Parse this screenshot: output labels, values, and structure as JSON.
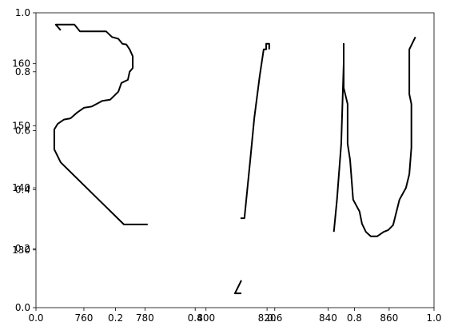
{
  "chart_data": [
    {
      "type": "line",
      "xlim": [
        0,
        1
      ],
      "ylim": [
        0,
        1
      ],
      "xticks": [
        {
          "value": 0,
          "label": "0.0"
        },
        {
          "value": 0.2,
          "label": "0.2"
        },
        {
          "value": 0.4,
          "label": "0.4"
        },
        {
          "value": 0.6,
          "label": "0.6"
        },
        {
          "value": 0.8,
          "label": "0.8"
        },
        {
          "value": 1,
          "label": "1.0"
        }
      ],
      "yticks": [
        {
          "value": 0,
          "label": "0.0"
        },
        {
          "value": 0.2,
          "label": "0.2"
        },
        {
          "value": 0.4,
          "label": "0.4"
        },
        {
          "value": 0.6,
          "label": "0.6"
        },
        {
          "value": 0.8,
          "label": "0.8"
        },
        {
          "value": 1,
          "label": "1.0"
        }
      ],
      "series": []
    },
    {
      "type": "line",
      "xlim": [
        744.3,
        874.7
      ],
      "ylim": [
        120.7,
        168.2
      ],
      "xticks": [
        760,
        780,
        800,
        820,
        840,
        860
      ],
      "yticks": [
        130,
        140,
        150,
        160
      ],
      "series": [
        {
          "color": "#000000",
          "x": [
            752.4,
            750.8,
            756.9,
            758.7,
            767.3,
            769.2,
            771.3,
            772.6,
            773.9,
            775.0,
            776.0,
            776.0,
            775.0,
            774.4,
            772.3,
            771.3,
            768.6,
            766.0,
            762.6,
            760.0,
            757.7,
            755.6,
            753.5,
            751.4,
            750.3,
            750.3,
            752.4,
            773.1,
            780.9
          ],
          "y": [
            165.4,
            166.3,
            166.3,
            165.2,
            165.2,
            164.3,
            164.0,
            163.2,
            163.1,
            162.3,
            161.2,
            159.3,
            158.7,
            157.4,
            156.9,
            155.5,
            154.2,
            154.0,
            153.1,
            152.9,
            152.1,
            151.2,
            151.0,
            150.3,
            149.4,
            146.2,
            144.1,
            134.1,
            134.1
          ]
        },
        {
          "color": "#000000",
          "x": [
            811.6,
            809.5,
            811.6,
            null,
            811.3,
            812.6,
            814.5,
            815.8,
            817.6,
            818.9,
            819.7,
            819.7,
            820.7,
            820.7
          ],
          "y": [
            125.1,
            123.0,
            123.0,
            null,
            135.1,
            135.1,
            144.5,
            151.2,
            158.0,
            162.3,
            162.3,
            163.2,
            163.2,
            162.3
          ]
        },
        {
          "color": "#000000",
          "x": [
            841.9,
            842.9,
            844.3,
            845.1,
            845.1,
            845.1,
            846.4,
            846.4,
            847.2,
            848.2,
            850.3,
            851.1,
            852.4,
            854.0,
            856.1,
            858.2,
            859.7,
            861.3,
            863.4,
            865.5,
            866.6,
            867.3,
            867.3,
            866.6,
            866.6,
            868.6
          ],
          "y": [
            132.9,
            138.1,
            147.1,
            160.0,
            163.2,
            156.1,
            153.5,
            147.1,
            144.5,
            138.1,
            136.2,
            134.2,
            132.9,
            132.2,
            132.2,
            132.9,
            133.2,
            134.0,
            138.1,
            140.0,
            142.2,
            146.5,
            153.5,
            155.1,
            162.3,
            164.3
          ]
        }
      ]
    }
  ]
}
